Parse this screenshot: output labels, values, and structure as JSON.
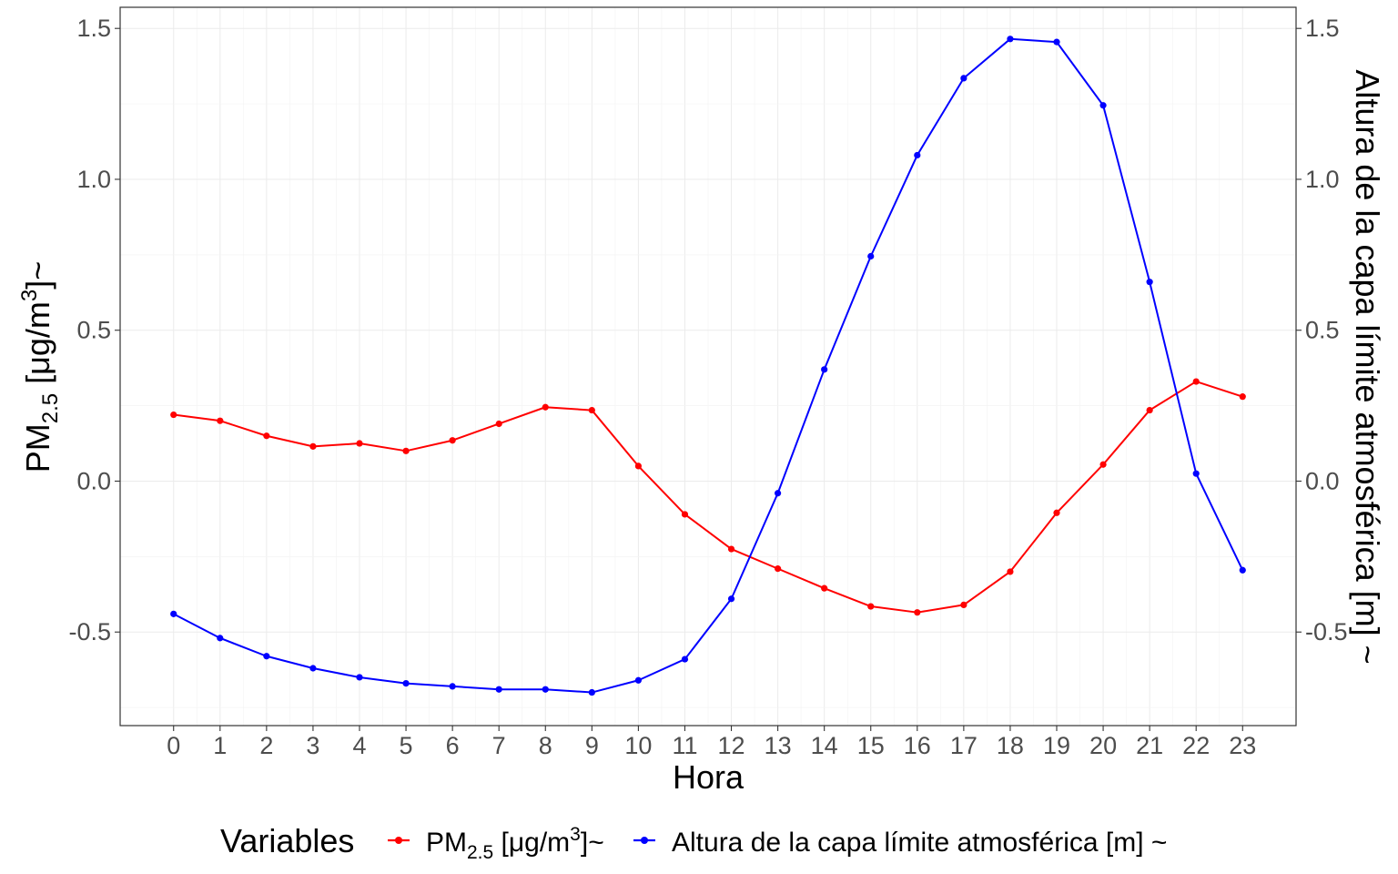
{
  "chart_data": {
    "type": "line",
    "xlabel": "Hora",
    "ylabel": {
      "pre": "PM",
      "sub": "2.5",
      "mid": " [μg/m",
      "sup": "3",
      "post": "]~"
    },
    "ylabel_right": "Altura de la capa límite atmosférica [m] ~",
    "x": [
      0,
      1,
      2,
      3,
      4,
      5,
      6,
      7,
      8,
      9,
      10,
      11,
      12,
      13,
      14,
      15,
      16,
      17,
      18,
      19,
      20,
      21,
      22,
      23
    ],
    "x_tick_labels": [
      "0",
      "1",
      "2",
      "3",
      "4",
      "5",
      "6",
      "7",
      "8",
      "9",
      "10",
      "11",
      "12",
      "13",
      "14",
      "15",
      "16",
      "17",
      "18",
      "19",
      "20",
      "21",
      "22",
      "23"
    ],
    "y_ticks": [
      -0.5,
      0.0,
      0.5,
      1.0,
      1.5
    ],
    "y_tick_labels": [
      "-0.5",
      "0.0",
      "0.5",
      "1.0",
      "1.5"
    ],
    "ylim": [
      -0.81,
      1.57
    ],
    "xlim": [
      -1.15,
      24.15
    ],
    "grid": true,
    "legend_position": "bottom",
    "legend_title": "Variables",
    "series": [
      {
        "name": "PM2.5 [μg/m3]~",
        "legend_label": {
          "pre": "PM",
          "sub": "2.5",
          "mid": " [μg/m",
          "sup": "3",
          "post": "]~"
        },
        "color": "#ff0000",
        "values": [
          0.22,
          0.2,
          0.15,
          0.115,
          0.125,
          0.1,
          0.135,
          0.19,
          0.245,
          0.235,
          0.05,
          -0.11,
          -0.225,
          -0.29,
          -0.355,
          -0.415,
          -0.435,
          -0.41,
          -0.3,
          -0.105,
          0.055,
          0.235,
          0.33,
          0.28
        ]
      },
      {
        "name": "Altura de la capa límite atmosférica [m] ~",
        "legend_label": {
          "pre": "Altura de la capa límite atmosférica [m] ~"
        },
        "color": "#0000ff",
        "values": [
          -0.44,
          -0.52,
          -0.58,
          -0.62,
          -0.65,
          -0.67,
          -0.68,
          -0.69,
          -0.69,
          -0.7,
          -0.66,
          -0.59,
          -0.39,
          -0.04,
          0.37,
          0.745,
          1.08,
          1.335,
          1.465,
          1.455,
          1.245,
          0.66,
          0.025,
          -0.295
        ]
      }
    ]
  }
}
